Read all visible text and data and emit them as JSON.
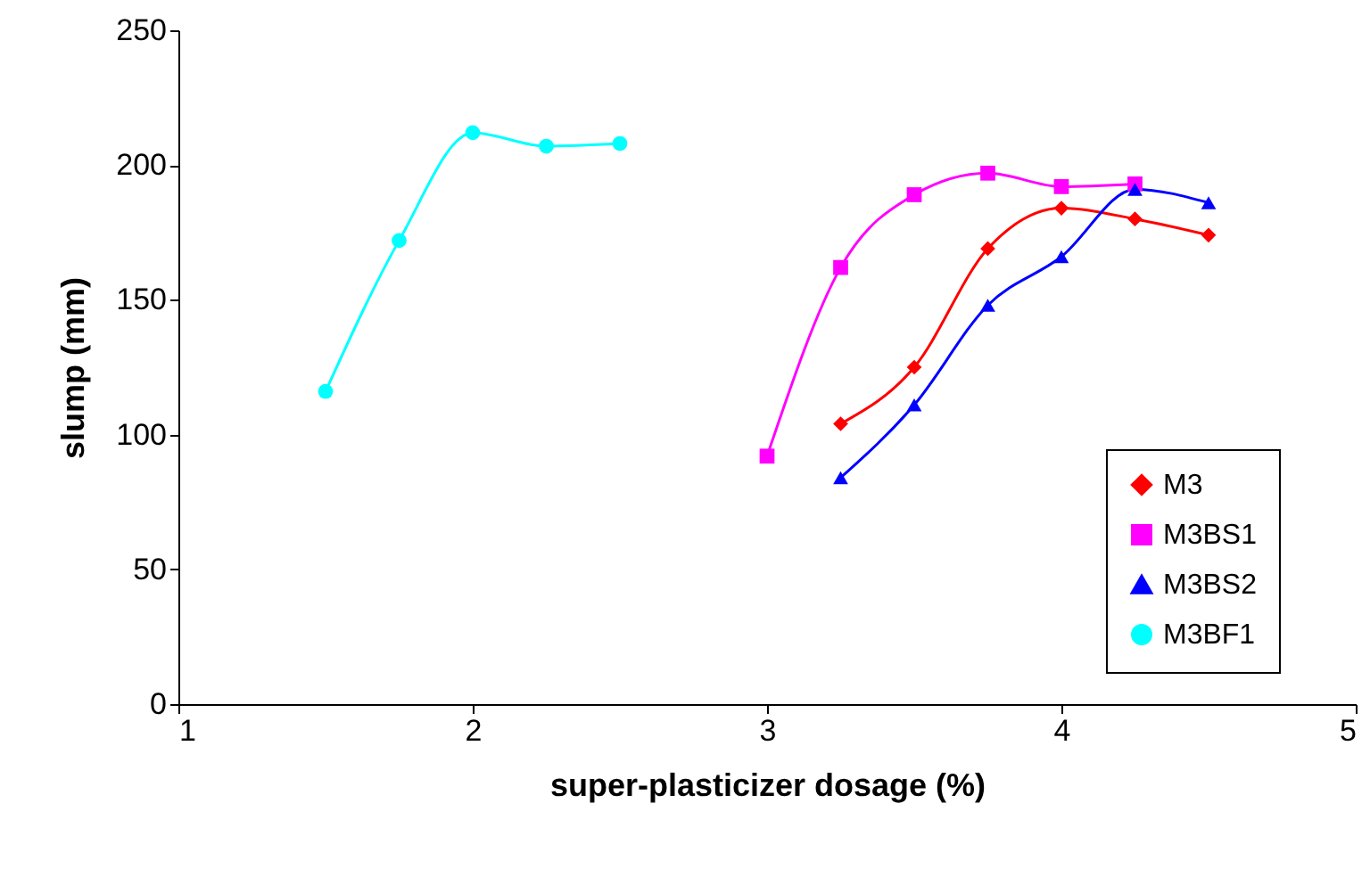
{
  "chart_data": {
    "type": "line",
    "xlabel": "super-plasticizer dosage (%)",
    "ylabel": "slump (mm)",
    "xlim": [
      1,
      5
    ],
    "xticks": [
      1,
      2,
      3,
      4,
      5
    ],
    "ylim": [
      0,
      250
    ],
    "yticks": [
      0,
      50,
      100,
      150,
      200,
      250
    ],
    "grid": false,
    "legend": "bottom right",
    "line_style": "solid",
    "series": [
      {
        "name": "M3",
        "color": "#ff0000",
        "marker": "diamond",
        "x": [
          3.25,
          3.5,
          3.75,
          4,
          4.25,
          4.5
        ],
        "values": [
          104,
          125,
          169,
          184,
          180,
          174
        ]
      },
      {
        "name": "M3BS1",
        "color": "#ff00ff",
        "marker": "square",
        "x": [
          3,
          3.25,
          3.5,
          3.75,
          4,
          4.25
        ],
        "values": [
          92,
          162,
          189,
          197,
          192,
          193
        ]
      },
      {
        "name": "M3BS2",
        "color": "#0000ff",
        "marker": "triangle",
        "x": [
          3.25,
          3.5,
          3.75,
          4,
          4.25,
          4.5
        ],
        "values": [
          84,
          111,
          148,
          166,
          191,
          186
        ]
      },
      {
        "name": "M3BF1",
        "color": "#00ffff",
        "marker": "circle",
        "x": [
          1.5,
          1.75,
          2,
          2.25,
          2.5
        ],
        "values": [
          116,
          172,
          212,
          207,
          208
        ]
      }
    ]
  }
}
